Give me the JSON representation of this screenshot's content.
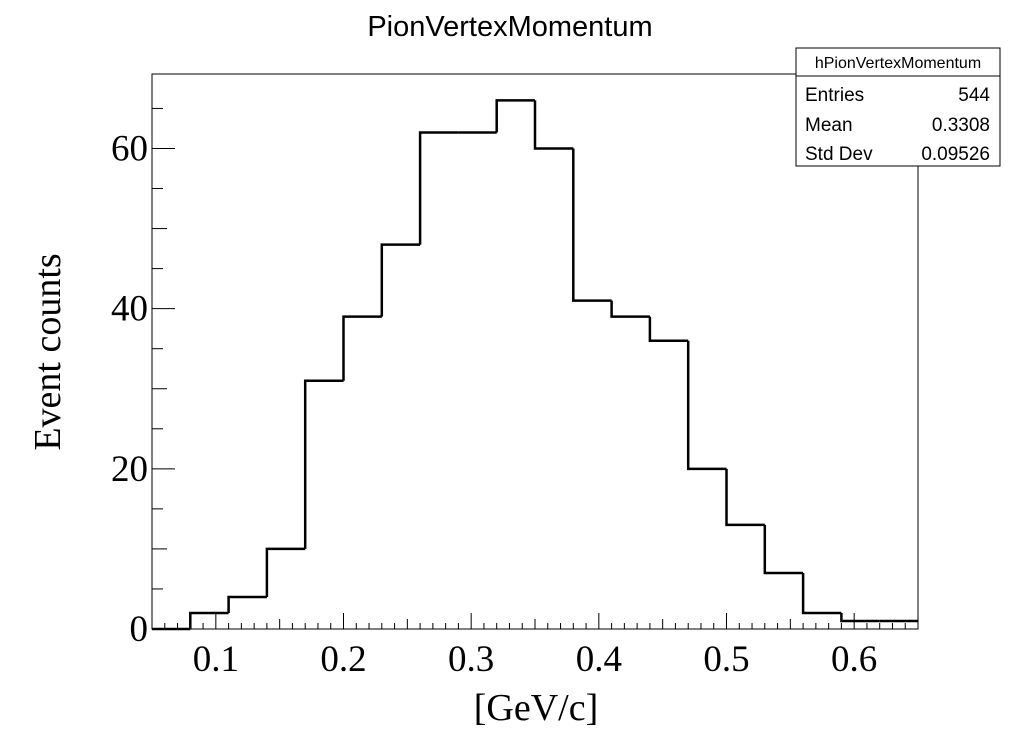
{
  "chart_data": {
    "type": "histogram",
    "title": "PionVertexMomentum",
    "xlabel": "[GeV/c]",
    "ylabel": "Event counts",
    "xlim": [
      0.05,
      0.65
    ],
    "ylim": [
      0,
      69.3
    ],
    "x_ticks": [
      "0.1",
      "0.2",
      "0.3",
      "0.4",
      "0.5",
      "0.6"
    ],
    "y_ticks": [
      "0",
      "20",
      "40",
      "60"
    ],
    "bin_edges": [
      0.05,
      0.08,
      0.11,
      0.14,
      0.17,
      0.2,
      0.23,
      0.26,
      0.29,
      0.32,
      0.35,
      0.38,
      0.41,
      0.44,
      0.47,
      0.5,
      0.53,
      0.56,
      0.59,
      0.62,
      0.65
    ],
    "values": [
      0,
      2,
      4,
      10,
      31,
      39,
      48,
      62,
      62,
      66,
      60,
      41,
      39,
      36,
      20,
      13,
      7,
      2,
      1,
      1
    ],
    "grid": false,
    "legend": "none",
    "stats_box": {
      "name": "hPionVertexMomentum",
      "placement": "top-right",
      "rows": [
        {
          "label": "Entries",
          "value": "544"
        },
        {
          "label": "Mean",
          "value": "0.3308"
        },
        {
          "label": "Std Dev",
          "value": "0.09526"
        }
      ]
    },
    "colors": {
      "line": "#000000",
      "background": "#ffffff"
    }
  }
}
